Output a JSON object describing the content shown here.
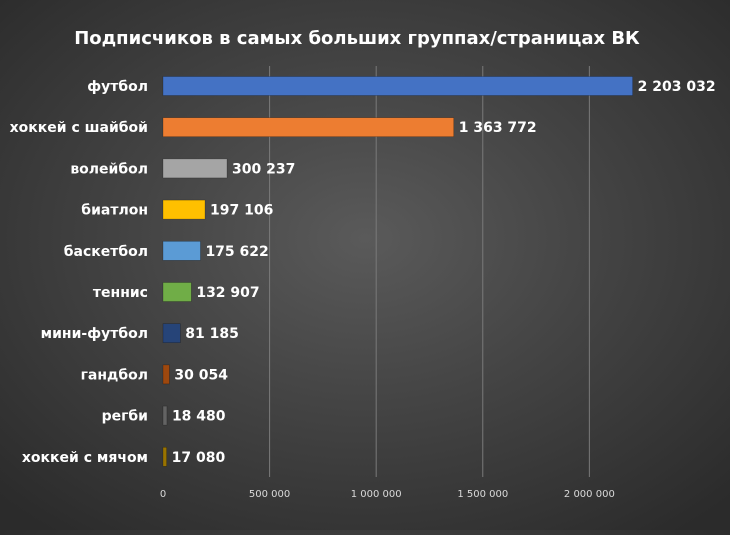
{
  "chart_data": {
    "type": "bar",
    "orientation": "horizontal",
    "title": "Подписчиков в самых больших группах/страницах ВК",
    "categories": [
      "футбол",
      "хоккей с шайбой",
      "волейбол",
      "биатлон",
      "баскетбол",
      "теннис",
      "мини-футбол",
      "гандбол",
      "регби",
      "хоккей с мячом"
    ],
    "values": [
      2203032,
      1363772,
      300237,
      197106,
      175622,
      132907,
      81185,
      30054,
      18480,
      17080
    ],
    "value_labels": [
      "2 203 032",
      "1 363 772",
      "300 237",
      "197 106",
      "175 622",
      "132 907",
      "81 185",
      "30 054",
      "18 480",
      "17 080"
    ],
    "colors": [
      "#4472c4",
      "#ed7d31",
      "#a5a5a5",
      "#ffc000",
      "#5b9bd5",
      "#70ad47",
      "#264478",
      "#9e480e",
      "#636363",
      "#997300"
    ],
    "x_ticks": [
      0,
      500000,
      1000000,
      1500000,
      2000000
    ],
    "x_tick_labels": [
      "0",
      "500 000",
      "1 000 000",
      "1 500 000",
      "2 000 000"
    ],
    "xlim": [
      0,
      2200000
    ],
    "xlabel": "",
    "ylabel": "",
    "grid": true,
    "legend": "none"
  }
}
